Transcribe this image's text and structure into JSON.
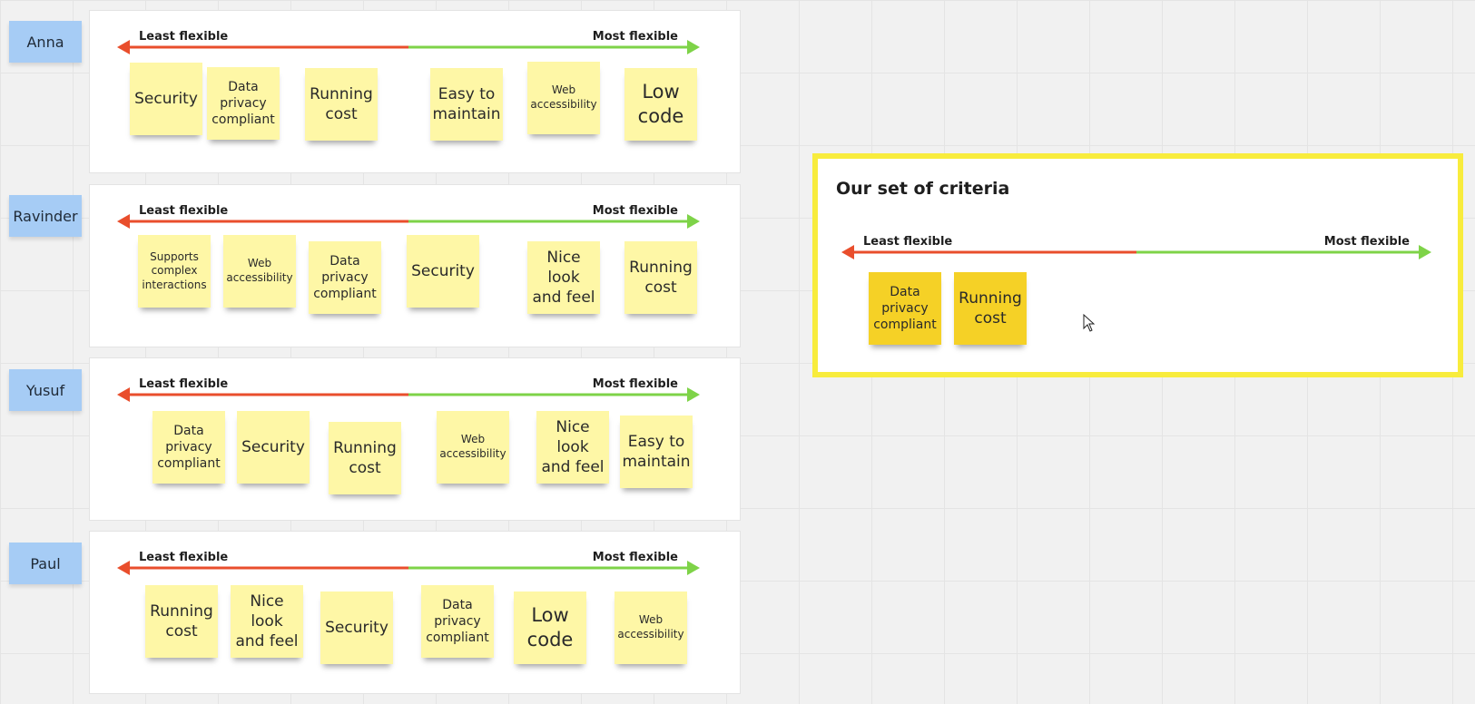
{
  "board": {
    "colors": {
      "least": "#e94e2c",
      "most": "#7ed348",
      "note": "#fef7a6",
      "note_selected": "#f5d126",
      "name_tag": "#a6ccf5",
      "criteria_border": "#f8ec3d"
    },
    "rows": [
      {
        "person": "Anna",
        "least_label": "Least flexible",
        "most_label": "Most flexible",
        "notes": [
          "Security",
          "Data privacy compliant",
          "Running cost",
          "Easy to maintain",
          "Web accessibility",
          "Low code"
        ]
      },
      {
        "person": "Ravinder",
        "least_label": "Least flexible",
        "most_label": "Most flexible",
        "notes": [
          "Supports complex interactions",
          "Web accessibility",
          "Data privacy compliant",
          "Security",
          "Nice look and feel",
          "Running cost"
        ]
      },
      {
        "person": "Yusuf",
        "least_label": "Least flexible",
        "most_label": "Most flexible",
        "notes": [
          "Data privacy compliant",
          "Security",
          "Running cost",
          "Web accessibility",
          "Nice look and feel",
          "Easy to maintain"
        ]
      },
      {
        "person": "Paul",
        "least_label": "Least flexible",
        "most_label": "Most flexible",
        "notes": [
          "Running cost",
          "Nice look and feel",
          "Security",
          "Data privacy compliant",
          "Low code",
          "Web accessibility"
        ]
      }
    ],
    "criteria": {
      "title": "Our set of criteria",
      "least_label": "Least flexible",
      "most_label": "Most flexible",
      "notes": [
        "Data privacy compliant",
        "Running cost"
      ]
    }
  }
}
